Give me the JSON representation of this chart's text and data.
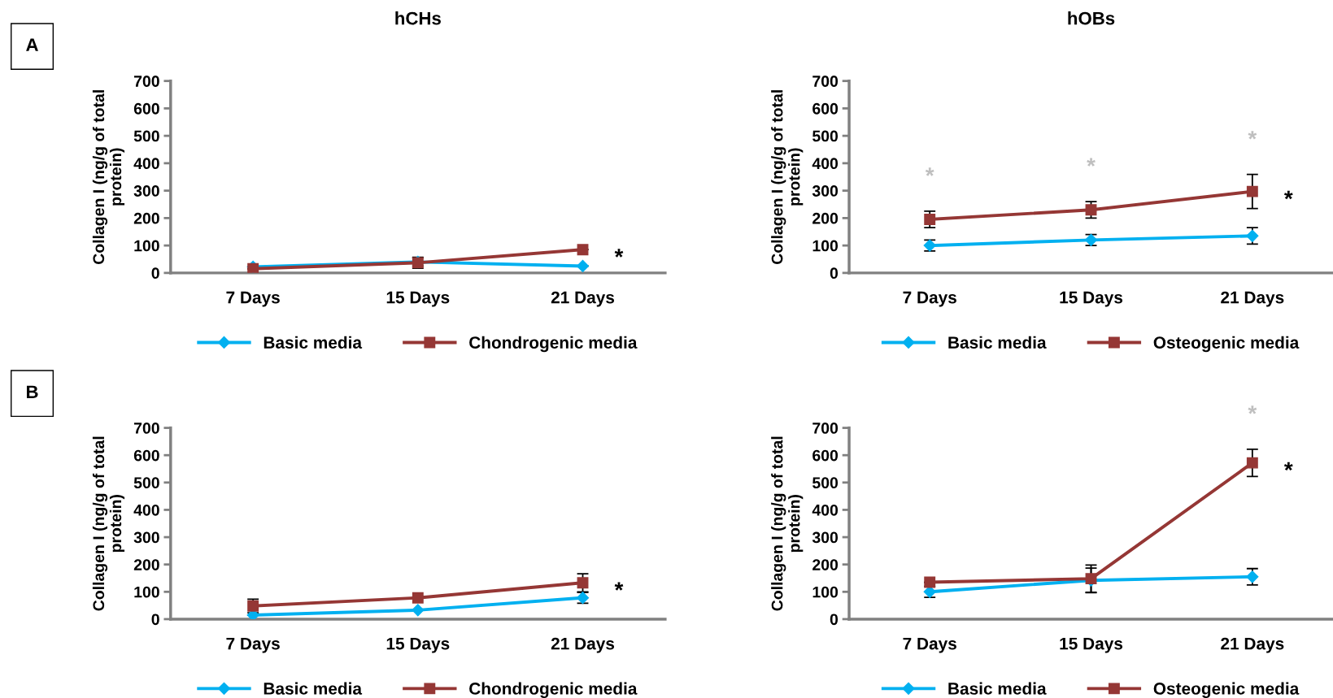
{
  "chart_data": [
    {
      "type": "line",
      "title": "hCHs",
      "ylabel": "Collagen I (ng/g of total\nprotein)",
      "categories": [
        "7 Days",
        "15 Days",
        "21 Days"
      ],
      "ylim": [
        0,
        700
      ],
      "yticks": [
        0,
        100,
        200,
        300,
        400,
        500,
        600,
        700
      ],
      "grid": false,
      "legend": "bottom",
      "annotations": [
        "A",
        {
          "text": "*",
          "x": "21 Days",
          "y": 85
        }
      ],
      "series": [
        {
          "name": "Basic media",
          "color": "#00b0f0",
          "marker": "diamond",
          "values": [
            22,
            40,
            25
          ],
          "errors": [
            null,
            15,
            null
          ]
        },
        {
          "name": "Chondrogenic media",
          "color": "#953735",
          "marker": "square",
          "values": [
            15,
            37,
            85
          ],
          "errors": [
            null,
            20,
            null
          ]
        }
      ]
    },
    {
      "type": "line",
      "title": "hOBs",
      "ylabel": "Collagen I (ng/g of total\nprotein)",
      "categories": [
        "7 Days",
        "15 Days",
        "21 Days"
      ],
      "ylim": [
        0,
        700
      ],
      "yticks": [
        0,
        100,
        200,
        300,
        400,
        500,
        600,
        700
      ],
      "grid": false,
      "legend": "bottom",
      "annotations": [
        {
          "text": "*",
          "x": "7 Days",
          "y": 225
        },
        {
          "text": "*",
          "x": "15 Days",
          "y": 260
        },
        {
          "text": "*",
          "x": "21 Days",
          "y": 359
        },
        {
          "text": "*",
          "x": "21 Days",
          "y": 297
        }
      ],
      "series": [
        {
          "name": "Basic media",
          "color": "#00b0f0",
          "marker": "diamond",
          "values": [
            100,
            120,
            135
          ],
          "errors": [
            20,
            20,
            30
          ]
        },
        {
          "name": "Osteogenic media",
          "color": "#953735",
          "marker": "square",
          "values": [
            195,
            230,
            297
          ],
          "errors": [
            30,
            30,
            62
          ]
        }
      ]
    },
    {
      "type": "line",
      "ylabel": "Collagen I (ng/g of total\nprotein)",
      "categories": [
        "7 Days",
        "15 Days",
        "21 Days"
      ],
      "ylim": [
        0,
        700
      ],
      "yticks": [
        0,
        100,
        200,
        300,
        400,
        500,
        600,
        700
      ],
      "grid": false,
      "legend": "bottom",
      "annotations": [
        "B",
        {
          "text": "*",
          "x": "21 Days",
          "y": 133
        }
      ],
      "series": [
        {
          "name": "Basic media",
          "color": "#00b0f0",
          "marker": "diamond",
          "values": [
            15,
            33,
            78
          ],
          "errors": [
            null,
            null,
            20
          ]
        },
        {
          "name": "Chondrogenic media",
          "color": "#953735",
          "marker": "square",
          "values": [
            48,
            78,
            133
          ],
          "errors": [
            25,
            null,
            33
          ]
        }
      ]
    },
    {
      "type": "line",
      "ylabel": "Collagen I (ng/g of total\nprotein)",
      "categories": [
        "7 Days",
        "15 Days",
        "21 Days"
      ],
      "ylim": [
        0,
        700
      ],
      "yticks": [
        0,
        100,
        200,
        300,
        400,
        500,
        600,
        700
      ],
      "grid": false,
      "legend": "bottom",
      "annotations": [
        {
          "text": "*",
          "x": "21 Days",
          "y": 622
        },
        {
          "text": "*",
          "x": "21 Days",
          "y": 572
        }
      ],
      "series": [
        {
          "name": "Basic media",
          "color": "#00b0f0",
          "marker": "diamond",
          "values": [
            100,
            142,
            155
          ],
          "errors": [
            20,
            45,
            30
          ]
        },
        {
          "name": "Osteogenic media",
          "color": "#953735",
          "marker": "square",
          "values": [
            135,
            148,
            572
          ],
          "errors": [
            null,
            50,
            50
          ]
        }
      ]
    }
  ]
}
